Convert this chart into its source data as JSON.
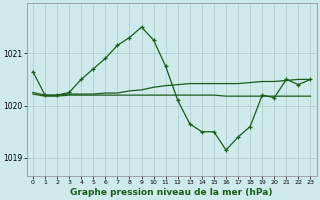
{
  "title": "Graphe pression niveau de la mer (hPa)",
  "background_color": "#ceeaea",
  "grid_color": "#adc8c8",
  "line_color": "#1a5c1a",
  "ylim": [
    1018.65,
    1021.95
  ],
  "xlim": [
    -0.5,
    23.5
  ],
  "yticks": [
    1019,
    1020,
    1021
  ],
  "xticks": [
    0,
    1,
    2,
    3,
    4,
    5,
    6,
    7,
    8,
    9,
    10,
    11,
    12,
    13,
    14,
    15,
    16,
    17,
    18,
    19,
    20,
    21,
    22,
    23
  ],
  "series1_x": [
    0,
    1,
    2,
    3,
    4,
    5,
    6,
    7,
    8,
    9,
    10,
    11,
    12,
    13,
    14,
    15,
    16,
    17,
    18,
    19,
    20,
    21,
    22,
    23
  ],
  "series1_y": [
    1020.65,
    1020.2,
    1020.2,
    1020.25,
    1020.5,
    1020.7,
    1020.9,
    1021.15,
    1021.3,
    1021.5,
    1021.25,
    1020.75,
    1020.1,
    1019.65,
    1019.5,
    1019.5,
    1019.15,
    1019.4,
    1019.6,
    1020.2,
    1020.15,
    1020.5,
    1020.4,
    1020.5
  ],
  "series2_x": [
    0,
    1,
    2,
    3,
    4,
    5,
    6,
    7,
    8,
    9,
    10,
    11,
    12,
    13,
    14,
    15,
    16,
    17,
    18,
    19,
    20,
    21,
    22,
    23
  ],
  "series2_y": [
    1020.25,
    1020.2,
    1020.2,
    1020.22,
    1020.22,
    1020.22,
    1020.24,
    1020.24,
    1020.28,
    1020.3,
    1020.35,
    1020.38,
    1020.4,
    1020.42,
    1020.42,
    1020.42,
    1020.42,
    1020.42,
    1020.44,
    1020.46,
    1020.46,
    1020.48,
    1020.5,
    1020.5
  ],
  "series3_x": [
    0,
    1,
    2,
    3,
    4,
    5,
    6,
    7,
    8,
    9,
    10,
    11,
    12,
    13,
    14,
    15,
    16,
    17,
    18,
    19,
    20,
    21,
    22,
    23
  ],
  "series3_y": [
    1020.22,
    1020.18,
    1020.18,
    1020.2,
    1020.2,
    1020.2,
    1020.2,
    1020.2,
    1020.2,
    1020.2,
    1020.2,
    1020.2,
    1020.2,
    1020.2,
    1020.2,
    1020.2,
    1020.18,
    1020.18,
    1020.18,
    1020.18,
    1020.18,
    1020.18,
    1020.18,
    1020.18
  ]
}
